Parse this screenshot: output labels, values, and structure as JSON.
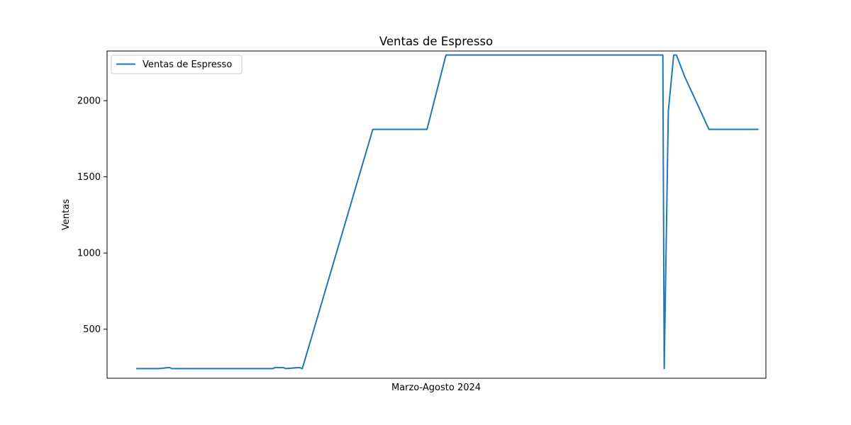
{
  "chart_data": {
    "type": "line",
    "title": "Ventas de Espresso",
    "xlabel": "Marzo-Agosto 2024",
    "ylabel": "Ventas",
    "ylim": [
      178,
      2326
    ],
    "xlim": [
      -4,
      239
    ],
    "yticks": [
      500,
      1000,
      1500,
      2000
    ],
    "grid": false,
    "legend_position": "upper-left",
    "series": [
      {
        "name": "Ventas de Espresso",
        "color": "#1f77b4",
        "x": [
          7,
          15,
          19,
          20,
          27,
          39,
          50,
          57,
          58,
          60,
          61,
          62,
          67,
          68,
          94,
          114,
          121,
          201,
          201.5,
          203,
          205,
          206,
          209,
          218,
          236
        ],
        "y": [
          241,
          241,
          248,
          241,
          241,
          241,
          241,
          241,
          248,
          248,
          248,
          241,
          248,
          241,
          1812,
          1812,
          2300,
          2300,
          241,
          1930,
          2300,
          2300,
          2160,
          1812,
          1812
        ]
      }
    ]
  }
}
